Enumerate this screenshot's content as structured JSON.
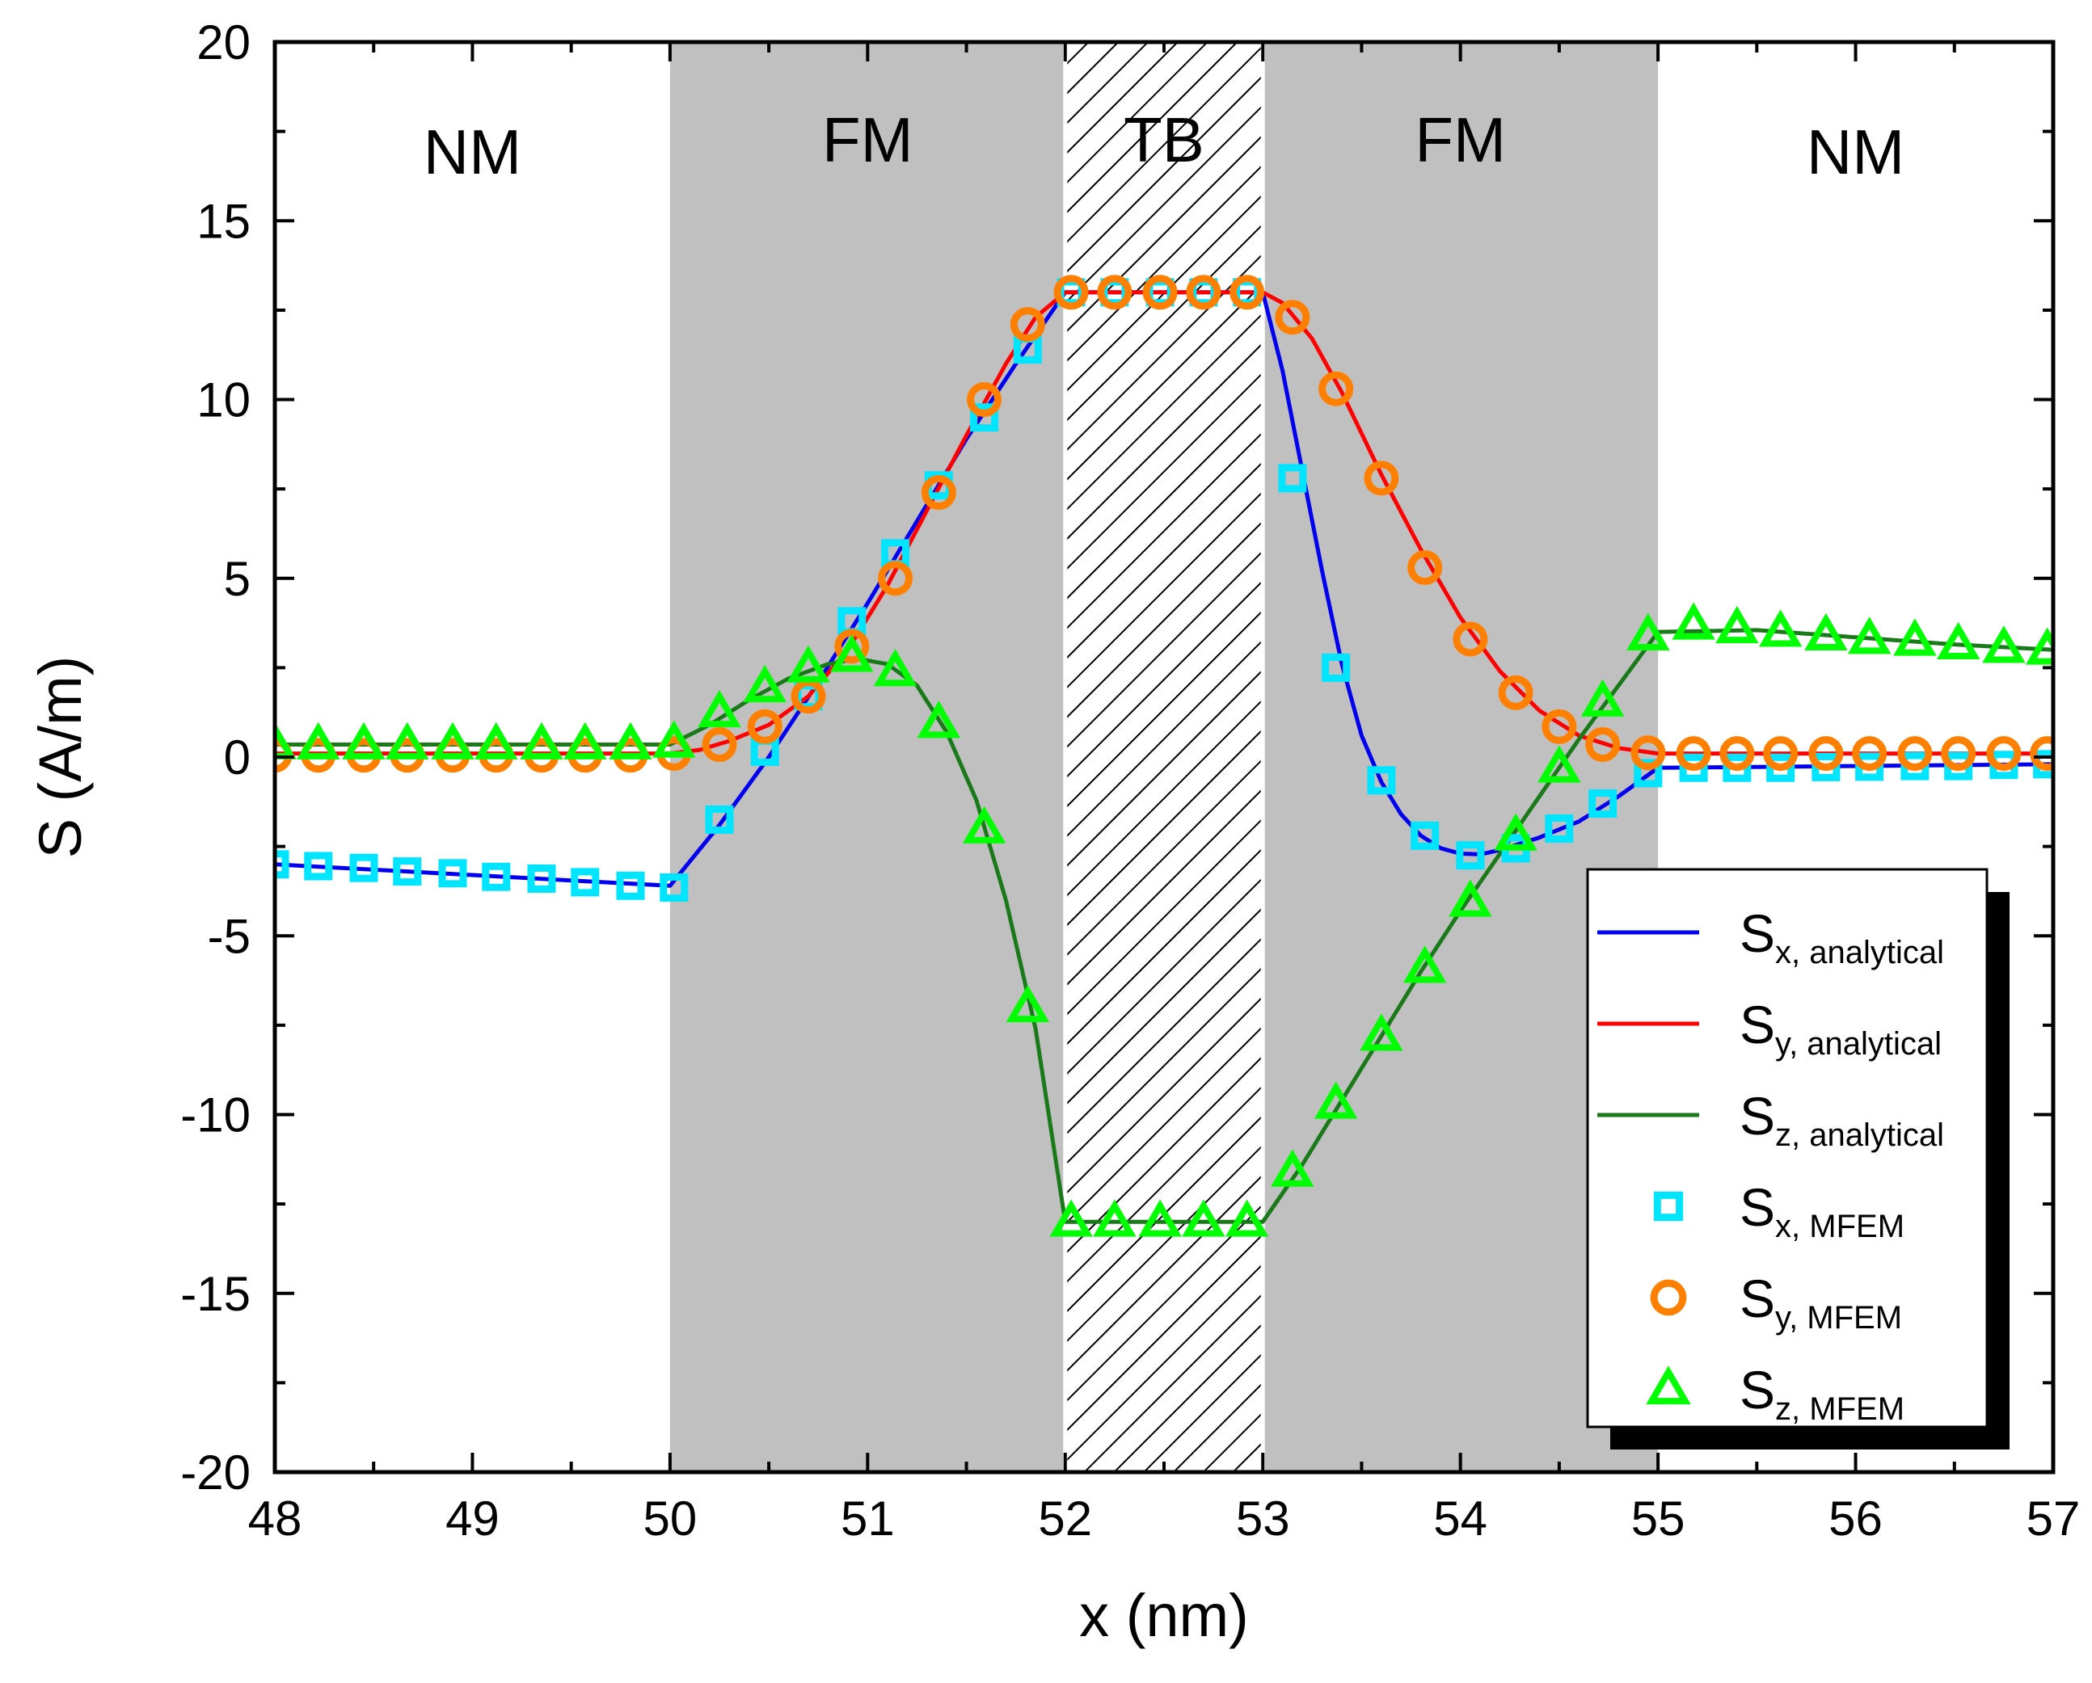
{
  "chart_data": {
    "type": "line",
    "title": "",
    "xlabel": "x (nm)",
    "ylabel": "S (A/m)",
    "xlim": [
      48,
      57
    ],
    "ylim": [
      -20,
      20
    ],
    "xticks": [
      48,
      49,
      50,
      51,
      52,
      53,
      54,
      55,
      56,
      57
    ],
    "yticks": [
      -20,
      -15,
      -10,
      -5,
      0,
      5,
      10,
      15,
      20
    ],
    "grid": false,
    "legend_position": "lower-right",
    "regions": [
      {
        "label": "NM",
        "from": 48,
        "to": 50,
        "fill": "none"
      },
      {
        "label": "FM",
        "from": 50,
        "to": 52,
        "fill": "gray"
      },
      {
        "label": "TB",
        "from": 52,
        "to": 53,
        "fill": "hatched"
      },
      {
        "label": "FM",
        "from": 53,
        "to": 55,
        "fill": "gray"
      },
      {
        "label": "NM",
        "from": 55,
        "to": 57,
        "fill": "none"
      }
    ],
    "series": [
      {
        "name": "S",
        "sub": "x, analytical",
        "kind": "line",
        "color": "#0000ee",
        "points": [
          [
            48,
            -3.0
          ],
          [
            48.5,
            -3.15
          ],
          [
            49,
            -3.3
          ],
          [
            49.5,
            -3.45
          ],
          [
            50,
            -3.6
          ],
          [
            50.25,
            -1.9
          ],
          [
            50.5,
            0.0
          ],
          [
            50.75,
            2.1
          ],
          [
            51,
            4.3
          ],
          [
            51.25,
            6.6
          ],
          [
            51.5,
            8.9
          ],
          [
            51.75,
            11.0
          ],
          [
            52,
            13.0
          ],
          [
            52.5,
            13.0
          ],
          [
            53,
            13.0
          ],
          [
            53.1,
            10.8
          ],
          [
            53.2,
            8.0
          ],
          [
            53.3,
            5.2
          ],
          [
            53.4,
            2.6
          ],
          [
            53.5,
            0.6
          ],
          [
            53.6,
            -0.7
          ],
          [
            53.7,
            -1.6
          ],
          [
            53.8,
            -2.2
          ],
          [
            53.9,
            -2.55
          ],
          [
            54,
            -2.7
          ],
          [
            54.1,
            -2.72
          ],
          [
            54.2,
            -2.6
          ],
          [
            54.4,
            -2.25
          ],
          [
            54.6,
            -1.8
          ],
          [
            54.8,
            -1.1
          ],
          [
            55,
            -0.3
          ],
          [
            56,
            -0.25
          ],
          [
            57,
            -0.2
          ]
        ]
      },
      {
        "name": "S",
        "sub": "y, analytical",
        "kind": "line",
        "color": "#ff0000",
        "points": [
          [
            48,
            0.1
          ],
          [
            49,
            0.1
          ],
          [
            50,
            0.1
          ],
          [
            50.15,
            0.2
          ],
          [
            50.3,
            0.45
          ],
          [
            50.5,
            0.9
          ],
          [
            50.7,
            1.7
          ],
          [
            50.9,
            3.0
          ],
          [
            51.1,
            4.8
          ],
          [
            51.3,
            6.9
          ],
          [
            51.5,
            9.0
          ],
          [
            51.7,
            11.0
          ],
          [
            51.85,
            12.3
          ],
          [
            52,
            13.0
          ],
          [
            52.5,
            13.0
          ],
          [
            53,
            13.0
          ],
          [
            53.1,
            12.7
          ],
          [
            53.25,
            11.7
          ],
          [
            53.4,
            10.2
          ],
          [
            53.6,
            7.9
          ],
          [
            53.8,
            5.8
          ],
          [
            54,
            3.9
          ],
          [
            54.2,
            2.4
          ],
          [
            54.4,
            1.3
          ],
          [
            54.6,
            0.6
          ],
          [
            54.8,
            0.25
          ],
          [
            55,
            0.1
          ],
          [
            56,
            0.1
          ],
          [
            57,
            0.1
          ]
        ]
      },
      {
        "name": "S",
        "sub": "z, analytical",
        "kind": "line",
        "color": "#1a7a1a",
        "points": [
          [
            48,
            0.35
          ],
          [
            49,
            0.35
          ],
          [
            50,
            0.35
          ],
          [
            50.2,
            0.9
          ],
          [
            50.4,
            1.6
          ],
          [
            50.6,
            2.2
          ],
          [
            50.8,
            2.6
          ],
          [
            50.95,
            2.75
          ],
          [
            51.1,
            2.6
          ],
          [
            51.25,
            2.0
          ],
          [
            51.4,
            0.7
          ],
          [
            51.55,
            -1.2
          ],
          [
            51.7,
            -4.0
          ],
          [
            51.85,
            -7.6
          ],
          [
            52,
            -13.0
          ],
          [
            52.5,
            -13.0
          ],
          [
            53,
            -13.0
          ],
          [
            53.2,
            -11.4
          ],
          [
            53.4,
            -9.6
          ],
          [
            53.6,
            -7.8
          ],
          [
            53.8,
            -6.0
          ],
          [
            54,
            -4.3
          ],
          [
            54.2,
            -2.7
          ],
          [
            54.4,
            -1.1
          ],
          [
            54.6,
            0.5
          ],
          [
            54.8,
            2.0
          ],
          [
            55,
            3.5
          ],
          [
            55.5,
            3.55
          ],
          [
            56,
            3.35
          ],
          [
            56.5,
            3.15
          ],
          [
            57,
            3.0
          ]
        ]
      },
      {
        "name": "S",
        "sub": "x, MFEM",
        "kind": "marker",
        "marker": "square",
        "color": "#00e5ff",
        "points": [
          [
            48,
            -3.0
          ],
          [
            48.22,
            -3.05
          ],
          [
            48.45,
            -3.1
          ],
          [
            48.67,
            -3.2
          ],
          [
            48.9,
            -3.25
          ],
          [
            49.12,
            -3.35
          ],
          [
            49.35,
            -3.4
          ],
          [
            49.57,
            -3.5
          ],
          [
            49.8,
            -3.6
          ],
          [
            50.02,
            -3.65
          ],
          [
            50.25,
            -1.75
          ],
          [
            50.48,
            0.15
          ],
          [
            50.7,
            1.7
          ],
          [
            50.92,
            3.8
          ],
          [
            51.14,
            5.7
          ],
          [
            51.36,
            7.6
          ],
          [
            51.59,
            9.5
          ],
          [
            51.81,
            11.4
          ],
          [
            52.03,
            13.0
          ],
          [
            52.25,
            13.0
          ],
          [
            52.48,
            13.0
          ],
          [
            52.7,
            13.0
          ],
          [
            52.92,
            13.0
          ],
          [
            53.15,
            7.8
          ],
          [
            53.37,
            2.5
          ],
          [
            53.6,
            -0.65
          ],
          [
            53.82,
            -2.2
          ],
          [
            54.05,
            -2.75
          ],
          [
            54.28,
            -2.55
          ],
          [
            54.5,
            -2.0
          ],
          [
            54.72,
            -1.3
          ],
          [
            54.95,
            -0.45
          ],
          [
            55.18,
            -0.3
          ],
          [
            55.4,
            -0.3
          ],
          [
            55.62,
            -0.3
          ],
          [
            55.85,
            -0.28
          ],
          [
            56.07,
            -0.27
          ],
          [
            56.3,
            -0.25
          ],
          [
            56.52,
            -0.25
          ],
          [
            56.75,
            -0.22
          ],
          [
            56.97,
            -0.2
          ]
        ]
      },
      {
        "name": "S",
        "sub": "y, MFEM",
        "kind": "marker",
        "marker": "circle",
        "color": "#ff8000",
        "points": [
          [
            48,
            0.05
          ],
          [
            48.22,
            0.05
          ],
          [
            48.45,
            0.05
          ],
          [
            48.67,
            0.05
          ],
          [
            48.9,
            0.05
          ],
          [
            49.12,
            0.05
          ],
          [
            49.35,
            0.05
          ],
          [
            49.57,
            0.05
          ],
          [
            49.8,
            0.05
          ],
          [
            50.02,
            0.1
          ],
          [
            50.25,
            0.35
          ],
          [
            50.48,
            0.85
          ],
          [
            50.7,
            1.7
          ],
          [
            50.92,
            3.1
          ],
          [
            51.14,
            5.0
          ],
          [
            51.36,
            7.4
          ],
          [
            51.59,
            10.0
          ],
          [
            51.81,
            12.1
          ],
          [
            52.03,
            13.0
          ],
          [
            52.25,
            13.0
          ],
          [
            52.48,
            13.0
          ],
          [
            52.7,
            13.0
          ],
          [
            52.92,
            13.0
          ],
          [
            53.15,
            12.3
          ],
          [
            53.37,
            10.3
          ],
          [
            53.6,
            7.8
          ],
          [
            53.82,
            5.3
          ],
          [
            54.05,
            3.3
          ],
          [
            54.28,
            1.8
          ],
          [
            54.5,
            0.85
          ],
          [
            54.72,
            0.35
          ],
          [
            54.95,
            0.12
          ],
          [
            55.18,
            0.1
          ],
          [
            55.4,
            0.1
          ],
          [
            55.62,
            0.1
          ],
          [
            55.85,
            0.1
          ],
          [
            56.07,
            0.1
          ],
          [
            56.3,
            0.1
          ],
          [
            56.52,
            0.1
          ],
          [
            56.75,
            0.1
          ],
          [
            56.97,
            0.1
          ]
        ]
      },
      {
        "name": "S",
        "sub": "z, MFEM",
        "kind": "marker",
        "marker": "triangle",
        "color": "#00ff00",
        "points": [
          [
            48,
            0.35
          ],
          [
            48.22,
            0.35
          ],
          [
            48.45,
            0.35
          ],
          [
            48.67,
            0.35
          ],
          [
            48.9,
            0.35
          ],
          [
            49.12,
            0.35
          ],
          [
            49.35,
            0.35
          ],
          [
            49.57,
            0.35
          ],
          [
            49.8,
            0.35
          ],
          [
            50.02,
            0.4
          ],
          [
            50.25,
            1.25
          ],
          [
            50.48,
            1.95
          ],
          [
            50.7,
            2.5
          ],
          [
            50.92,
            2.8
          ],
          [
            51.14,
            2.4
          ],
          [
            51.36,
            0.95
          ],
          [
            51.59,
            -2.0
          ],
          [
            51.81,
            -7.0
          ],
          [
            52.03,
            -13.0
          ],
          [
            52.25,
            -13.0
          ],
          [
            52.48,
            -13.0
          ],
          [
            52.7,
            -13.0
          ],
          [
            52.92,
            -13.0
          ],
          [
            53.15,
            -11.6
          ],
          [
            53.37,
            -9.7
          ],
          [
            53.6,
            -7.8
          ],
          [
            53.82,
            -5.9
          ],
          [
            54.05,
            -4.05
          ],
          [
            54.28,
            -2.2
          ],
          [
            54.5,
            -0.3
          ],
          [
            54.72,
            1.55
          ],
          [
            54.95,
            3.4
          ],
          [
            55.18,
            3.7
          ],
          [
            55.4,
            3.6
          ],
          [
            55.62,
            3.5
          ],
          [
            55.85,
            3.4
          ],
          [
            56.07,
            3.3
          ],
          [
            56.3,
            3.25
          ],
          [
            56.52,
            3.15
          ],
          [
            56.75,
            3.05
          ],
          [
            56.97,
            3.0
          ]
        ]
      }
    ]
  }
}
